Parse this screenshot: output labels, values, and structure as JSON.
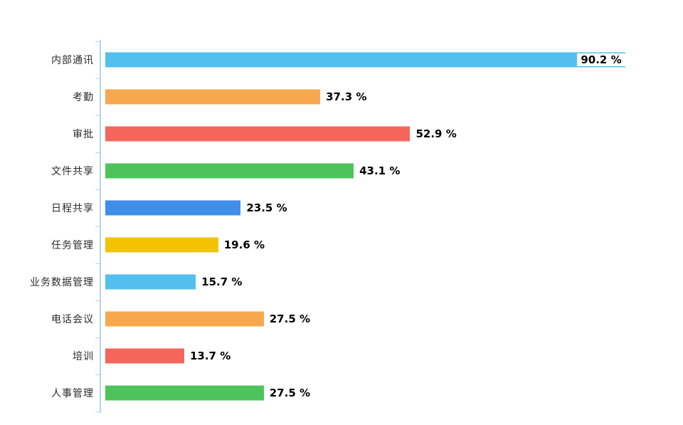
{
  "chart_data": {
    "type": "bar",
    "orientation": "horizontal",
    "title": "",
    "xlabel": "",
    "ylabel": "",
    "xlim": [
      0,
      100
    ],
    "grid": false,
    "legend": false,
    "axis_color": "#B5D3EC",
    "categories": [
      "内部通讯",
      "考勤",
      "审批",
      "文件共享",
      "日程共享",
      "任务管理",
      "业务数据管理",
      "电话会议",
      "培训",
      "人事管理"
    ],
    "values": [
      90.2,
      37.3,
      52.9,
      43.1,
      23.5,
      19.6,
      15.7,
      27.5,
      13.7,
      27.5
    ],
    "value_labels": [
      "90.2 %",
      "37.3 %",
      "52.9 %",
      "43.1 %",
      "23.5 %",
      "19.6 %",
      "15.7 %",
      "27.5 %",
      "13.7 %",
      "27.5 %"
    ],
    "colors": [
      "#53BFEE",
      "#F7A84E",
      "#F4665C",
      "#4DC45B",
      "#3F8EE8",
      "#F3C301",
      "#53BFEE",
      "#F7A84E",
      "#F4665C",
      "#4DC45B"
    ]
  }
}
